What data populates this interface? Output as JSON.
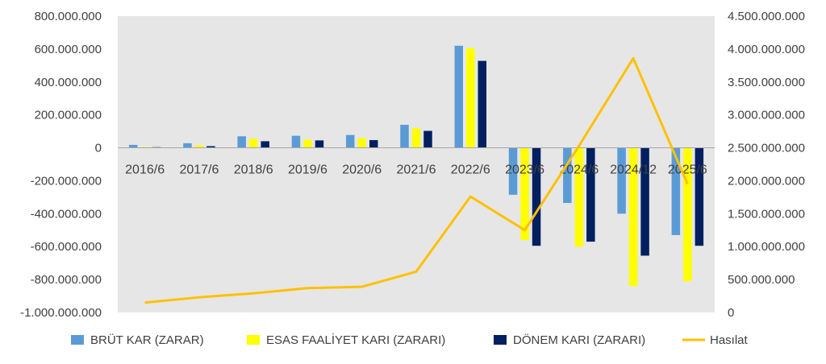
{
  "chart_data": {
    "type": "bar",
    "categories": [
      "2016/6",
      "2017/6",
      "2018/6",
      "2019/6",
      "2020/6",
      "2021/6",
      "2022/6",
      "2023/6",
      "2024/6",
      "2024/12",
      "2025/6"
    ],
    "series": [
      {
        "name": "BRÜT KAR (ZARAR)",
        "type": "bar",
        "axis": "left",
        "color": "#5B9BD5",
        "values": [
          18000000,
          28000000,
          70000000,
          73000000,
          78000000,
          140000000,
          620000000,
          -285000000,
          -335000000,
          -400000000,
          -530000000
        ]
      },
      {
        "name": "ESAS FAALİYET KARI (ZARARI)",
        "type": "bar",
        "axis": "left",
        "color": "#FFFF00",
        "values": [
          5000000,
          15000000,
          55000000,
          50000000,
          58000000,
          118000000,
          605000000,
          -560000000,
          -600000000,
          -840000000,
          -810000000
        ]
      },
      {
        "name": "DÖNEM KARI (ZARARI)",
        "type": "bar",
        "axis": "left",
        "color": "#002060",
        "values": [
          4000000,
          10000000,
          40000000,
          45000000,
          47000000,
          103000000,
          528000000,
          -595000000,
          -570000000,
          -655000000,
          -595000000
        ]
      },
      {
        "name": "Hasılat",
        "type": "line",
        "axis": "right",
        "color": "#FFC000",
        "values": [
          150000000,
          230000000,
          290000000,
          370000000,
          390000000,
          620000000,
          1760000000,
          1250000000,
          2530000000,
          3860000000,
          1950000000
        ]
      }
    ],
    "y_left": {
      "min": -1000000000,
      "max": 800000000,
      "step": 200000000,
      "tick_labels": [
        "-1.000.000.000",
        "-800.000.000",
        "-600.000.000",
        "-400.000.000",
        "-200.000.000",
        "0",
        "200.000.000",
        "400.000.000",
        "600.000.000",
        "800.000.000"
      ]
    },
    "y_right": {
      "min": 0,
      "max": 4500000000,
      "step": 500000000,
      "tick_labels": [
        "0",
        "500.000.000",
        "1.000.000.000",
        "1.500.000.000",
        "2.000.000.000",
        "2.500.000.000",
        "3.000.000.000",
        "3.500.000.000",
        "4.000.000.000",
        "4.500.000.000"
      ]
    },
    "grid": false,
    "legend": "bottom",
    "plot_background": "#E7E6E6",
    "axis_color": "#404040"
  }
}
